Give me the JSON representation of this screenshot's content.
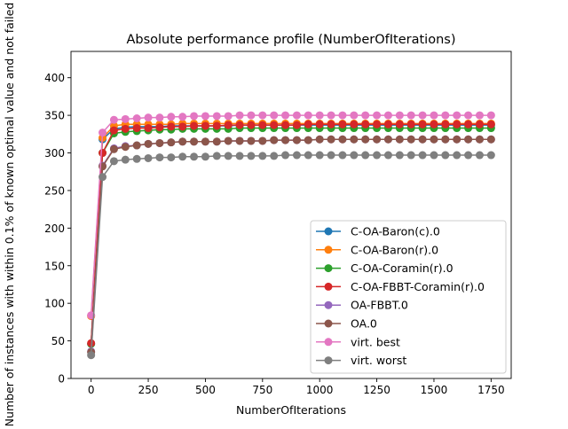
{
  "chart_data": {
    "type": "line",
    "title": "Absolute performance profile (NumberOfIterations)",
    "xlabel": "NumberOfIterations",
    "ylabel": "Number of instances with within 0.1% of known optimal value and not failed",
    "xlim": [
      -88,
      1838
    ],
    "ylim": [
      0,
      435
    ],
    "xticks": [
      0,
      250,
      500,
      750,
      1000,
      1250,
      1500,
      1750
    ],
    "yticks": [
      0,
      50,
      100,
      150,
      200,
      250,
      300,
      350,
      400
    ],
    "grid": false,
    "legend_position": "lower right",
    "x": [
      0,
      50,
      100,
      150,
      200,
      250,
      300,
      350,
      400,
      450,
      500,
      550,
      600,
      650,
      700,
      750,
      800,
      850,
      900,
      950,
      1000,
      1050,
      1100,
      1150,
      1200,
      1250,
      1300,
      1350,
      1400,
      1450,
      1500,
      1550,
      1600,
      1650,
      1700,
      1750
    ],
    "series": [
      {
        "name": "C-OA-Baron(c).0",
        "color": "#1f77b4",
        "values": [
          46,
          318,
          332,
          334,
          335,
          335,
          335,
          336,
          336,
          336,
          336,
          336,
          336,
          337,
          337,
          337,
          337,
          337,
          337,
          337,
          337,
          337,
          337,
          337,
          337,
          337,
          337,
          337,
          337,
          337,
          337,
          337,
          337,
          337,
          337,
          337
        ]
      },
      {
        "name": "C-OA-Baron(r).0",
        "color": "#ff7f0e",
        "values": [
          83,
          320,
          336,
          338,
          338,
          338,
          338,
          338,
          339,
          339,
          339,
          339,
          339,
          339,
          339,
          339,
          339,
          339,
          339,
          339,
          339,
          339,
          339,
          339,
          339,
          339,
          339,
          339,
          339,
          339,
          339,
          339,
          339,
          339,
          339,
          339
        ]
      },
      {
        "name": "C-OA-Coramin(r).0",
        "color": "#2ca02c",
        "values": [
          46,
          300,
          326,
          328,
          329,
          330,
          331,
          331,
          332,
          332,
          332,
          332,
          332,
          333,
          333,
          333,
          333,
          333,
          333,
          333,
          333,
          333,
          333,
          333,
          333,
          333,
          333,
          333,
          333,
          333,
          333,
          333,
          333,
          333,
          333,
          333
        ]
      },
      {
        "name": "C-OA-FBBT-Coramin(r).0",
        "color": "#d62728",
        "values": [
          47,
          300,
          330,
          332,
          333,
          333,
          334,
          335,
          335,
          336,
          336,
          336,
          337,
          337,
          337,
          337,
          337,
          337,
          337,
          338,
          338,
          338,
          338,
          338,
          338,
          338,
          338,
          338,
          338,
          338,
          338,
          338,
          338,
          338,
          338,
          338
        ]
      },
      {
        "name": "OA-FBBT.0",
        "color": "#9467bd",
        "values": [
          36,
          283,
          306,
          309,
          310,
          312,
          313,
          314,
          315,
          315,
          315,
          315,
          316,
          316,
          316,
          316,
          317,
          317,
          317,
          317,
          318,
          318,
          318,
          318,
          318,
          318,
          318,
          318,
          318,
          318,
          318,
          318,
          318,
          318,
          318,
          318
        ]
      },
      {
        "name": "OA.0",
        "color": "#8c564b",
        "values": [
          35,
          282,
          305,
          308,
          310,
          312,
          313,
          314,
          315,
          315,
          315,
          315,
          316,
          316,
          316,
          316,
          317,
          317,
          317,
          317,
          318,
          318,
          318,
          318,
          318,
          318,
          318,
          318,
          318,
          318,
          318,
          318,
          318,
          318,
          318,
          318
        ]
      },
      {
        "name": "virt. best",
        "color": "#e377c2",
        "values": [
          84,
          327,
          344,
          345,
          346,
          347,
          347,
          348,
          348,
          349,
          349,
          349,
          349,
          350,
          350,
          350,
          350,
          350,
          350,
          350,
          350,
          350,
          350,
          350,
          350,
          350,
          350,
          350,
          350,
          350,
          350,
          350,
          350,
          350,
          350,
          350
        ]
      },
      {
        "name": "virt. worst",
        "color": "#7f7f7f",
        "values": [
          31,
          268,
          289,
          291,
          292,
          293,
          294,
          294,
          295,
          295,
          295,
          296,
          296,
          296,
          296,
          296,
          296,
          297,
          297,
          297,
          297,
          297,
          297,
          297,
          297,
          297,
          297,
          297,
          297,
          297,
          297,
          297,
          297,
          297,
          297,
          297
        ]
      }
    ]
  }
}
